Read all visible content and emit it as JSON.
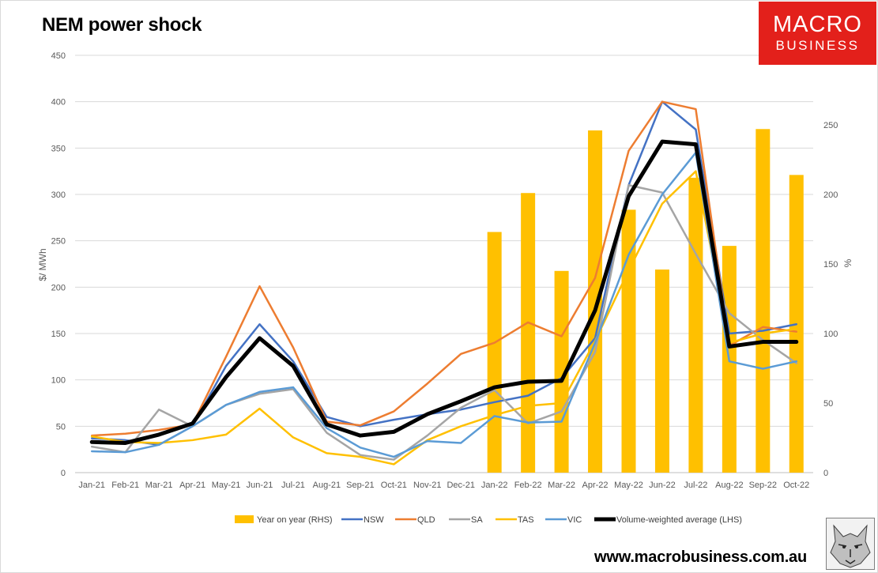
{
  "title": "NEM power shock",
  "logo": {
    "line1": "MACRO",
    "line2": "BUSINESS",
    "color": "#e3201b"
  },
  "website": "www.macrobusiness.com.au",
  "chart_data": {
    "type": "bar+line",
    "title": "NEM power shock",
    "ylabel_left": "$/ MWh",
    "ylabel_right": "%",
    "ylim_left": [
      0,
      450
    ],
    "yticks_left": [
      0,
      50,
      100,
      150,
      200,
      250,
      300,
      350,
      400,
      450
    ],
    "ylim_right": [
      0,
      300
    ],
    "yticks_right": [
      0,
      50,
      100,
      150,
      200,
      250
    ],
    "categories": [
      "Jan-21",
      "Feb-21",
      "Mar-21",
      "Apr-21",
      "May-21",
      "Jun-21",
      "Jul-21",
      "Aug-21",
      "Sep-21",
      "Oct-21",
      "Nov-21",
      "Dec-21",
      "Jan-22",
      "Feb-22",
      "Mar-22",
      "Apr-22",
      "May-22",
      "Jun-22",
      "Jul-22",
      "Aug-22",
      "Sep-22",
      "Oct-22"
    ],
    "bars": {
      "name": "Year on year (RHS)",
      "axis": "right",
      "color": "#ffc000",
      "values": [
        null,
        null,
        null,
        null,
        null,
        null,
        null,
        null,
        null,
        null,
        null,
        null,
        173,
        201,
        145,
        246,
        189,
        146,
        212,
        163,
        247,
        214
      ]
    },
    "series": [
      {
        "name": "NSW",
        "color": "#4472c4",
        "width": 2.5,
        "values": [
          37,
          35,
          30,
          50,
          115,
          160,
          120,
          60,
          50,
          57,
          63,
          68,
          76,
          83,
          102,
          145,
          310,
          400,
          370,
          150,
          153,
          160
        ]
      },
      {
        "name": "QLD",
        "color": "#ed7d31",
        "width": 2.5,
        "values": [
          40,
          42,
          46,
          52,
          125,
          201,
          135,
          55,
          51,
          66,
          96,
          128,
          140,
          162,
          147,
          210,
          347,
          400,
          392,
          137,
          157,
          152
        ]
      },
      {
        "name": "SA",
        "color": "#a5a5a5",
        "width": 2.5,
        "values": [
          28,
          22,
          68,
          50,
          73,
          85,
          90,
          43,
          19,
          14,
          40,
          70,
          89,
          53,
          66,
          130,
          310,
          302,
          236,
          172,
          143,
          118
        ]
      },
      {
        "name": "TAS",
        "color": "#ffc000",
        "width": 2.5,
        "values": [
          39,
          33,
          32,
          35,
          41,
          69,
          38,
          21,
          17,
          9,
          35,
          50,
          62,
          72,
          75,
          142,
          218,
          290,
          325,
          140,
          150,
          155
        ]
      },
      {
        "name": "VIC",
        "color": "#5b9bd5",
        "width": 2.5,
        "values": [
          23,
          22,
          30,
          50,
          73,
          87,
          92,
          48,
          27,
          17,
          34,
          32,
          61,
          54,
          55,
          140,
          235,
          300,
          345,
          120,
          112,
          120
        ]
      },
      {
        "name": "Volume-weighted average (LHS)",
        "color": "#000000",
        "width": 5,
        "values": [
          33,
          32,
          41,
          53,
          103,
          145,
          115,
          52,
          40,
          44,
          63,
          77,
          92,
          98,
          99,
          175,
          298,
          357,
          354,
          136,
          141,
          141
        ]
      }
    ],
    "legend": [
      "Year on year (RHS)",
      "NSW",
      "QLD",
      "SA",
      "TAS",
      "VIC",
      "Volume-weighted average (LHS)"
    ],
    "legend_position": "bottom",
    "grid": true
  }
}
